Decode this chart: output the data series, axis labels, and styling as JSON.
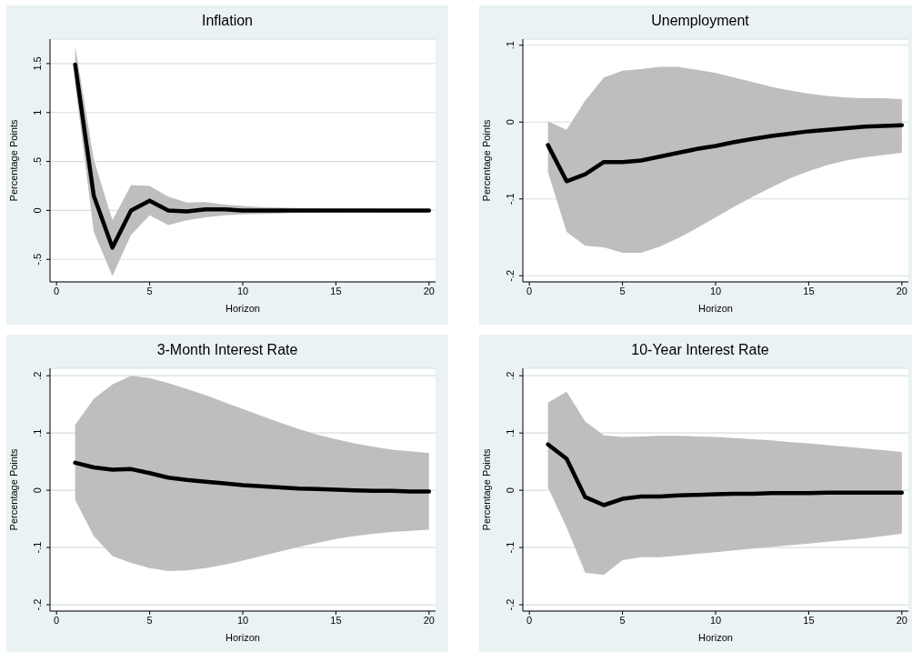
{
  "chart_data": [
    {
      "type": "line",
      "title": "Inflation",
      "xlabel": "Horizon",
      "ylabel": "Percentage Points",
      "x": [
        1,
        2,
        3,
        4,
        5,
        6,
        7,
        8,
        9,
        10,
        11,
        12,
        13,
        14,
        15,
        16,
        17,
        18,
        19,
        20
      ],
      "xlim": [
        -0.35,
        20.35
      ],
      "xticks": [
        0,
        5,
        10,
        15,
        20
      ],
      "ylim": [
        -0.73,
        1.75
      ],
      "yticks": [
        {
          "value": -0.5,
          "label": "-.5"
        },
        0,
        {
          "value": 0.5,
          "label": ".5"
        },
        1,
        1.5
      ],
      "grid": "y",
      "series": [
        {
          "color": "#000000",
          "values": [
            1.49,
            0.15,
            -0.38,
            0.0,
            0.1,
            0.0,
            -0.01,
            0.01,
            0.01,
            0,
            0,
            0,
            0,
            0,
            0,
            0,
            0,
            0,
            0,
            0
          ],
          "upper": [
            1.68,
            0.52,
            -0.1,
            0.26,
            0.25,
            0.14,
            0.08,
            0.085,
            0.06,
            0.045,
            0.035,
            0.03,
            0.025,
            0.02,
            0.02,
            0.015,
            0.015,
            0.01,
            0.01,
            0.01
          ],
          "lower": [
            1.3,
            -0.22,
            -0.67,
            -0.25,
            -0.05,
            -0.15,
            -0.1,
            -0.07,
            -0.05,
            -0.04,
            -0.035,
            -0.03,
            -0.02,
            -0.02,
            -0.015,
            -0.01,
            -0.01,
            -0.01,
            -0.01,
            -0.01
          ]
        }
      ]
    },
    {
      "type": "line",
      "title": "Unemployment",
      "xlabel": "Horizon",
      "ylabel": "Percentage Points",
      "x": [
        1,
        2,
        3,
        4,
        5,
        6,
        7,
        8,
        9,
        10,
        11,
        12,
        13,
        14,
        15,
        16,
        17,
        18,
        19,
        20
      ],
      "xlim": [
        -0.35,
        20.35
      ],
      "xticks": [
        0,
        5,
        10,
        15,
        20
      ],
      "ylim": [
        -0.208,
        0.108
      ],
      "yticks": [
        {
          "value": -0.2,
          "label": "-.2"
        },
        {
          "value": -0.1,
          "label": "-.1"
        },
        0,
        {
          "value": 0.1,
          "label": ".1"
        }
      ],
      "grid": "y",
      "series": [
        {
          "color": "#000000",
          "values": [
            -0.03,
            -0.077,
            -0.068,
            -0.052,
            -0.052,
            -0.05,
            -0.045,
            -0.04,
            -0.035,
            -0.031,
            -0.026,
            -0.022,
            -0.018,
            -0.015,
            -0.012,
            -0.01,
            -0.008,
            -0.006,
            -0.005,
            -0.004
          ],
          "upper": [
            0.001,
            -0.01,
            0.028,
            0.058,
            0.067,
            0.069,
            0.072,
            0.072,
            0.068,
            0.064,
            0.058,
            0.052,
            0.046,
            0.041,
            0.037,
            0.034,
            0.032,
            0.031,
            0.031,
            0.03
          ],
          "lower": [
            -0.065,
            -0.143,
            -0.161,
            -0.163,
            -0.17,
            -0.17,
            -0.162,
            -0.151,
            -0.138,
            -0.124,
            -0.11,
            -0.097,
            -0.085,
            -0.073,
            -0.064,
            -0.056,
            -0.05,
            -0.046,
            -0.043,
            -0.04
          ]
        }
      ]
    },
    {
      "type": "line",
      "title": "3-Month Interest Rate",
      "xlabel": "Horizon",
      "ylabel": "Percentage Points",
      "x": [
        1,
        2,
        3,
        4,
        5,
        6,
        7,
        8,
        9,
        10,
        11,
        12,
        13,
        14,
        15,
        16,
        17,
        18,
        19,
        20
      ],
      "xlim": [
        -0.35,
        20.35
      ],
      "xticks": [
        0,
        5,
        10,
        15,
        20
      ],
      "ylim": [
        -0.211,
        0.213
      ],
      "yticks": [
        {
          "value": -0.2,
          "label": "-.2"
        },
        {
          "value": -0.1,
          "label": "-.1"
        },
        0,
        {
          "value": 0.1,
          "label": ".1"
        },
        {
          "value": 0.2,
          "label": ".2"
        }
      ],
      "grid": "y",
      "series": [
        {
          "color": "#000000",
          "values": [
            0.048,
            0.04,
            0.036,
            0.037,
            0.03,
            0.022,
            0.018,
            0.015,
            0.012,
            0.009,
            0.007,
            0.005,
            0.003,
            0.002,
            0.001,
            0,
            -0.001,
            -0.001,
            -0.002,
            -0.002
          ],
          "upper": [
            0.114,
            0.16,
            0.185,
            0.2,
            0.196,
            0.187,
            0.177,
            0.166,
            0.154,
            0.142,
            0.13,
            0.118,
            0.107,
            0.097,
            0.089,
            0.082,
            0.076,
            0.071,
            0.068,
            0.065
          ],
          "lower": [
            -0.017,
            -0.08,
            -0.115,
            -0.127,
            -0.136,
            -0.141,
            -0.14,
            -0.136,
            -0.13,
            -0.123,
            -0.115,
            -0.107,
            -0.099,
            -0.092,
            -0.085,
            -0.08,
            -0.076,
            -0.073,
            -0.071,
            -0.069
          ]
        }
      ]
    },
    {
      "type": "line",
      "title": "10-Year Interest Rate",
      "xlabel": "Horizon",
      "ylabel": "Percentage Points",
      "x": [
        1,
        2,
        3,
        4,
        5,
        6,
        7,
        8,
        9,
        10,
        11,
        12,
        13,
        14,
        15,
        16,
        17,
        18,
        19,
        20
      ],
      "xlim": [
        -0.35,
        20.35
      ],
      "xticks": [
        0,
        5,
        10,
        15,
        20
      ],
      "ylim": [
        -0.211,
        0.213
      ],
      "yticks": [
        {
          "value": -0.2,
          "label": "-.2"
        },
        {
          "value": -0.1,
          "label": "-.1"
        },
        0,
        {
          "value": 0.1,
          "label": ".1"
        },
        {
          "value": 0.2,
          "label": ".2"
        }
      ],
      "grid": "y",
      "series": [
        {
          "color": "#000000",
          "values": [
            0.08,
            0.055,
            -0.012,
            -0.026,
            -0.015,
            -0.011,
            -0.011,
            -0.009,
            -0.008,
            -0.007,
            -0.006,
            -0.006,
            -0.005,
            -0.005,
            -0.005,
            -0.004,
            -0.004,
            -0.004,
            -0.004,
            -0.004
          ],
          "upper": [
            0.153,
            0.172,
            0.12,
            0.096,
            0.093,
            0.094,
            0.095,
            0.095,
            0.094,
            0.093,
            0.091,
            0.089,
            0.087,
            0.084,
            0.082,
            0.079,
            0.076,
            0.073,
            0.07,
            0.067
          ],
          "lower": [
            0.005,
            -0.065,
            -0.144,
            -0.148,
            -0.122,
            -0.117,
            -0.117,
            -0.114,
            -0.111,
            -0.108,
            -0.105,
            -0.102,
            -0.099,
            -0.096,
            -0.093,
            -0.09,
            -0.087,
            -0.084,
            -0.08,
            -0.076
          ]
        }
      ]
    }
  ]
}
